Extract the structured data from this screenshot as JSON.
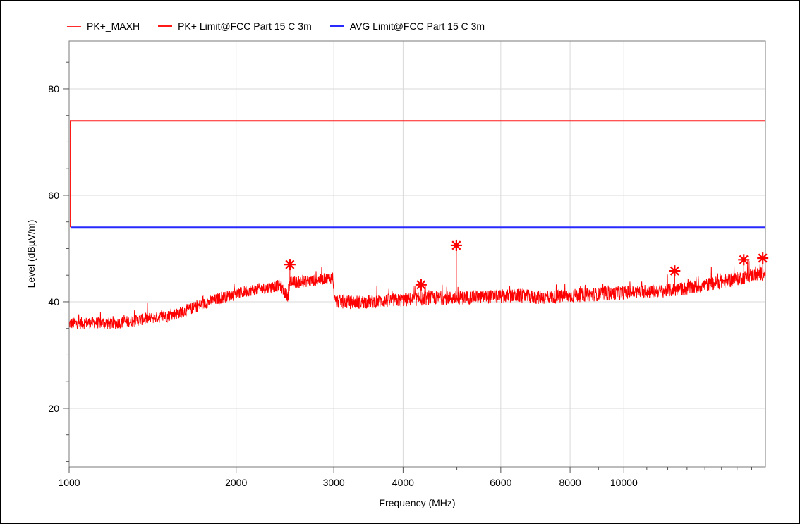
{
  "legend": [
    {
      "label": "PK+_MAXH",
      "color": "#ff2a2a"
    },
    {
      "label": "PK+ Limit@FCC Part 15 C  3m",
      "color": "#ff1a1a"
    },
    {
      "label": "AVG Limit@FCC Part 15 C  3m",
      "color": "#2a2aff"
    }
  ],
  "chart_data": {
    "type": "line",
    "xlabel": "Frequency (MHz)",
    "ylabel": "Level (dBµV/m)",
    "x_scale": "log",
    "xlim": [
      1000,
      18000
    ],
    "ylim": [
      9,
      89
    ],
    "x_ticks": [
      1000,
      2000,
      3000,
      4000,
      6000,
      8000,
      10000
    ],
    "x_tick_labels": [
      "1000",
      "2000",
      "3000",
      "4000",
      "6000",
      "8000",
      "10000"
    ],
    "y_ticks": [
      20,
      40,
      60,
      80
    ],
    "y_tick_labels": [
      "20",
      "40",
      "60",
      "80"
    ],
    "grid": true,
    "legend_position": "top",
    "series": [
      {
        "name": "PK+_MAXH",
        "color": "#ff0000",
        "x": [
          1000,
          1100,
          1200,
          1300,
          1400,
          1500,
          1600,
          1700,
          1800,
          1900,
          2000,
          2100,
          2200,
          2300,
          2400,
          2450,
          2480,
          2500,
          2600,
          2700,
          2800,
          2900,
          2990,
          3010,
          3200,
          3500,
          4000,
          4300,
          4500,
          5000,
          5500,
          6000,
          6500,
          7000,
          7500,
          8000,
          9000,
          10000,
          11000,
          12000,
          13000,
          14000,
          15000,
          16000,
          17000,
          18000
        ],
        "values": [
          35.8,
          36.0,
          35.8,
          36.3,
          36.8,
          37.2,
          38.0,
          39.0,
          40.0,
          40.8,
          41.3,
          42.0,
          42.3,
          42.6,
          43.0,
          41.5,
          41.0,
          43.5,
          43.6,
          43.8,
          44.0,
          44.2,
          44.5,
          40.0,
          39.8,
          39.9,
          40.2,
          40.4,
          40.6,
          40.6,
          40.8,
          40.9,
          41.0,
          40.7,
          40.8,
          41.0,
          41.3,
          41.6,
          41.8,
          42.0,
          42.4,
          43.0,
          43.6,
          44.2,
          44.8,
          45.3
        ]
      },
      {
        "name": "PK+ Limit@FCC Part 15 C  3m",
        "color": "#ff1a1a",
        "x": [
          1000,
          18000
        ],
        "values": [
          74,
          74
        ]
      },
      {
        "name": "AVG Limit@FCC Part 15 C  3m",
        "color": "#2a2aff",
        "x": [
          1000,
          18000
        ],
        "values": [
          54,
          54
        ]
      }
    ],
    "markers": [
      {
        "x": 2500,
        "y": 47.0
      },
      {
        "x": 4310,
        "y": 43.2
      },
      {
        "x": 4990,
        "y": 50.6
      },
      {
        "x": 12350,
        "y": 45.8
      },
      {
        "x": 16450,
        "y": 47.9
      },
      {
        "x": 17800,
        "y": 48.2
      }
    ]
  }
}
